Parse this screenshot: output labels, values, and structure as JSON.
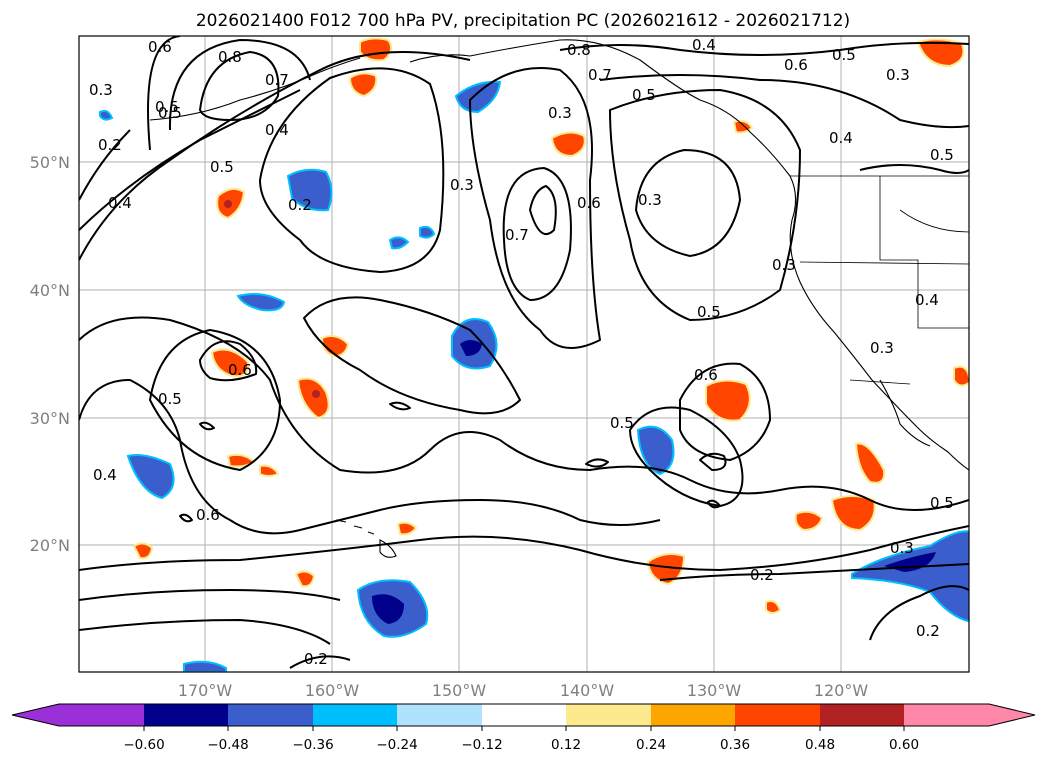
{
  "title": "2026021400 F012 700 hPa PV, precipitation PC (2026021612 - 2026021712)",
  "lat_labels": [
    "50°N",
    "40°N",
    "30°N",
    "20°N"
  ],
  "lon_labels": [
    "170°W",
    "160°W",
    "150°W",
    "140°W",
    "130°W",
    "120°W"
  ],
  "colorbar": {
    "ticks": [
      "−0.60",
      "−0.48",
      "−0.36",
      "−0.24",
      "−0.12",
      "0.12",
      "0.24",
      "0.36",
      "0.48",
      "0.60"
    ],
    "colors": [
      "#9b30d9",
      "#00008b",
      "#3a5fcd",
      "#00bfff",
      "#aee3fb",
      "#ffffff",
      "#fde98e",
      "#ffa500",
      "#ff4500",
      "#b22222",
      "#ff88aa"
    ]
  },
  "contour_labels": [
    "0.8",
    "0.8",
    "0.7",
    "0.7",
    "0.6",
    "0.6",
    "0.5",
    "0.5",
    "0.5",
    "0.5",
    "0.4",
    "0.4",
    "0.4",
    "0.4",
    "0.3",
    "0.3",
    "0.3",
    "0.3",
    "0.3",
    "0.2",
    "0.2",
    "0.2",
    "0.2",
    "0.6",
    "0.6",
    "0.5",
    "0.5",
    "0.5",
    "0.4",
    "0.7",
    "0.6",
    "0.5",
    "0.6",
    "0.2",
    "0.3",
    "0.3",
    "0.4",
    "0.5",
    "0.5",
    "0.3"
  ]
}
